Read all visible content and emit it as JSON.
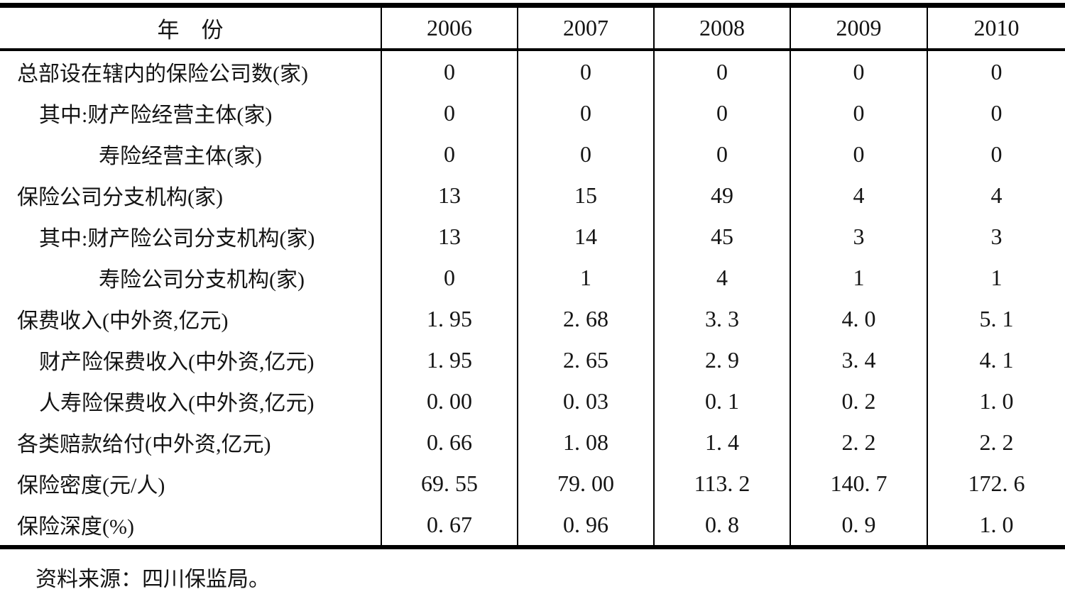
{
  "table": {
    "header": {
      "year_label": "年　份",
      "years": [
        "2006",
        "2007",
        "2008",
        "2009",
        "2010"
      ]
    },
    "rows": [
      {
        "label": "总部设在辖内的保险公司数(家)",
        "indent": 0,
        "values": [
          "0",
          "0",
          "0",
          "0",
          "0"
        ]
      },
      {
        "label": "其中:财产险经营主体(家)",
        "indent": 1,
        "values": [
          "0",
          "0",
          "0",
          "0",
          "0"
        ]
      },
      {
        "label": "寿险经营主体(家)",
        "indent": 2,
        "values": [
          "0",
          "0",
          "0",
          "0",
          "0"
        ]
      },
      {
        "label": "保险公司分支机构(家)",
        "indent": 0,
        "values": [
          "13",
          "15",
          "49",
          "4",
          "4"
        ]
      },
      {
        "label": "其中:财产险公司分支机构(家)",
        "indent": 1,
        "values": [
          "13",
          "14",
          "45",
          "3",
          "3"
        ]
      },
      {
        "label": "寿险公司分支机构(家)",
        "indent": 2,
        "values": [
          "0",
          "1",
          "4",
          "1",
          "1"
        ]
      },
      {
        "label": "保费收入(中外资,亿元)",
        "indent": 0,
        "values": [
          "1. 95",
          "2. 68",
          "3. 3",
          "4. 0",
          "5. 1"
        ]
      },
      {
        "label": "财产险保费收入(中外资,亿元)",
        "indent": 1,
        "values": [
          "1. 95",
          "2. 65",
          "2. 9",
          "3. 4",
          "4. 1"
        ]
      },
      {
        "label": "人寿险保费收入(中外资,亿元)",
        "indent": 1,
        "values": [
          "0. 00",
          "0. 03",
          "0. 1",
          "0. 2",
          "1. 0"
        ]
      },
      {
        "label": "各类赔款给付(中外资,亿元)",
        "indent": 0,
        "values": [
          "0. 66",
          "1. 08",
          "1. 4",
          "2. 2",
          "2. 2"
        ]
      },
      {
        "label": "保险密度(元/人)",
        "indent": 0,
        "values": [
          "69. 55",
          "79. 00",
          "113. 2",
          "140. 7",
          "172. 6"
        ]
      },
      {
        "label": "保险深度(%)",
        "indent": 0,
        "values": [
          "0. 67",
          "0. 96",
          "0. 8",
          "0. 9",
          "1. 0"
        ]
      }
    ]
  },
  "footer": {
    "source": "资料来源：四川保监局。"
  },
  "colors": {
    "background": "#ffffff",
    "text": "#141414",
    "border": "#000000"
  }
}
